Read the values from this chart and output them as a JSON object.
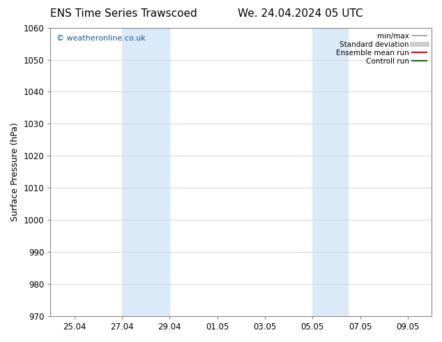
{
  "title_left": "ENS Time Series Trawscoed",
  "title_right": "We. 24.04.2024 05 UTC",
  "ylabel": "Surface Pressure (hPa)",
  "ylim": [
    970,
    1060
  ],
  "yticks": [
    970,
    980,
    990,
    1000,
    1010,
    1020,
    1030,
    1040,
    1050,
    1060
  ],
  "xlim": [
    0,
    16
  ],
  "xtick_labels": [
    "25.04",
    "27.04",
    "29.04",
    "01.05",
    "03.05",
    "05.05",
    "07.05",
    "09.05"
  ],
  "xtick_positions": [
    1,
    3,
    5,
    7,
    9,
    11,
    13,
    15
  ],
  "shaded_regions": [
    {
      "x_start": 3,
      "x_end": 5,
      "color": "#dbeaf8"
    },
    {
      "x_start": 11,
      "x_end": 12.5,
      "color": "#dbeaf8"
    }
  ],
  "watermark_text": "© weatheronline.co.uk",
  "watermark_color": "#1155aa",
  "legend_entries": [
    {
      "label": "min/max",
      "color": "#999999",
      "lw": 1.2
    },
    {
      "label": "Standard deviation",
      "color": "#cccccc",
      "lw": 5
    },
    {
      "label": "Ensemble mean run",
      "color": "#dd0000",
      "lw": 1.5
    },
    {
      "label": "Controll run",
      "color": "#007700",
      "lw": 1.5
    }
  ],
  "background_color": "#ffffff",
  "grid_color": "#cccccc",
  "tick_color": "#444444",
  "spine_color": "#888888",
  "title_fontsize": 11,
  "axis_fontsize": 8.5,
  "ylabel_fontsize": 9,
  "legend_fontsize": 7.5,
  "watermark_fontsize": 8
}
